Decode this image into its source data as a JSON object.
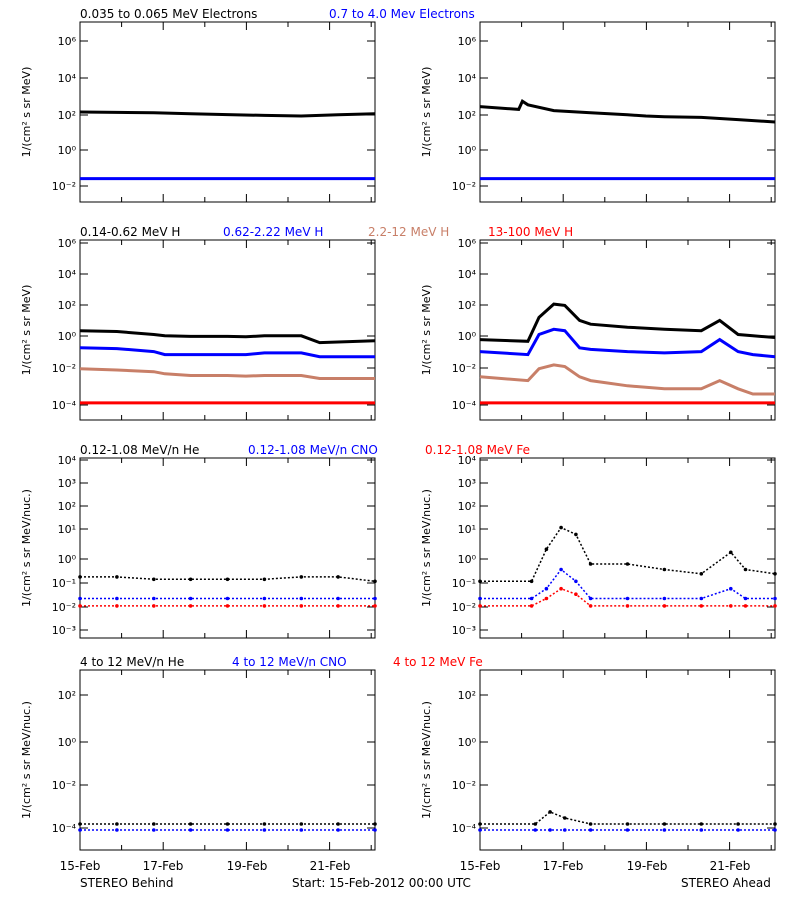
{
  "colors": {
    "black": "#000000",
    "blue": "#0000ff",
    "tan": "#c87f68",
    "red": "#ff0000"
  },
  "rows": [
    {
      "ylabel": "1/(cm² s sr MeV)",
      "legend": [
        {
          "text": "0.035 to 0.065 MeV Electrons",
          "color": "#000000"
        },
        {
          "text": "0.7 to 4.0 Mev Electrons",
          "color": "#0000ff"
        }
      ],
      "ytick_labels": [
        "10⁶",
        "10⁴",
        "10²",
        "10⁰",
        "10⁻²"
      ]
    },
    {
      "ylabel": "1/(cm² s sr MeV)",
      "legend": [
        {
          "text": "0.14-0.62 MeV H",
          "color": "#000000"
        },
        {
          "text": "0.62-2.22 MeV H",
          "color": "#0000ff"
        },
        {
          "text": "2.2-12 MeV H",
          "color": "#c87f68"
        },
        {
          "text": "13-100 MeV H",
          "color": "#ff0000"
        }
      ],
      "ytick_labels": [
        "10⁶",
        "10⁴",
        "10²",
        "10⁰",
        "10⁻²",
        "10⁻⁴"
      ]
    },
    {
      "ylabel": "1/(cm² s sr MeV/nuc.)",
      "legend": [
        {
          "text": "0.12-1.08 MeV/n He",
          "color": "#000000"
        },
        {
          "text": "0.12-1.08 MeV/n CNO",
          "color": "#0000ff"
        },
        {
          "text": "0.12-1.08 MeV Fe",
          "color": "#ff0000"
        }
      ],
      "ytick_labels": [
        "10⁴",
        "10³",
        "10²",
        "10¹",
        "10⁰",
        "10⁻¹",
        "10⁻²",
        "10⁻³"
      ]
    },
    {
      "ylabel": "1/(cm² s sr MeV/nuc.)",
      "legend": [
        {
          "text": "4 to 12 MeV/n He",
          "color": "#000000"
        },
        {
          "text": "4 to 12 MeV/n CNO",
          "color": "#0000ff"
        },
        {
          "text": "4 to 12 MeV Fe",
          "color": "#ff0000"
        }
      ],
      "ytick_labels": [
        "10²",
        "10⁰",
        "10⁻²",
        "10⁻⁴"
      ]
    }
  ],
  "xtick_labels": [
    "15-Feb",
    "17-Feb",
    "19-Feb",
    "21-Feb"
  ],
  "footer": {
    "left": "STEREO Behind",
    "center": "Start: 15-Feb-2012 00:00 UTC",
    "right": "STEREO Ahead"
  },
  "chart_data": [
    {
      "type": "line",
      "panel": "STEREO Behind electrons",
      "ylog": true,
      "ylim": [
        0.001,
        10000000
      ],
      "xlim": [
        0,
        8
      ],
      "x": [
        0,
        1,
        2,
        3,
        4,
        5,
        6,
        7,
        8
      ],
      "series": [
        {
          "name": "0.035 to 0.065 MeV Electrons",
          "color": "#000000",
          "values": [
            100,
            95,
            90,
            80,
            72,
            65,
            60,
            70,
            80
          ]
        },
        {
          "name": "0.7 to 4.0 Mev Electrons",
          "color": "#0000ff",
          "values": [
            0.02,
            0.02,
            0.02,
            0.02,
            0.02,
            0.02,
            0.02,
            0.02,
            0.02
          ]
        }
      ]
    },
    {
      "type": "line",
      "panel": "STEREO Ahead electrons",
      "ylog": true,
      "ylim": [
        0.001,
        10000000
      ],
      "xlim": [
        0,
        8
      ],
      "x": [
        0,
        1.05,
        1.15,
        1.3,
        2,
        3,
        4,
        4.5,
        5,
        6,
        7,
        8
      ],
      "series": [
        {
          "name": "0.035 to 0.065 MeV Electrons",
          "color": "#000000",
          "values": [
            200,
            140,
            400,
            250,
            120,
            90,
            70,
            60,
            55,
            50,
            38,
            28
          ]
        },
        {
          "name": "0.7 to 4.0 Mev Electrons",
          "color": "#0000ff",
          "values": [
            0.02,
            0.02,
            0.02,
            0.02,
            0.02,
            0.02,
            0.02,
            0.02,
            0.02,
            0.02,
            0.02,
            0.02
          ]
        }
      ]
    },
    {
      "type": "line",
      "panel": "STEREO Behind protons",
      "ylog": true,
      "ylim": [
        3e-05,
        1000000
      ],
      "xlim": [
        0,
        8
      ],
      "x": [
        0,
        1,
        2,
        2.3,
        3,
        4,
        4.5,
        5,
        6,
        6.5,
        8
      ],
      "series": [
        {
          "name": "0.14-0.62 MeV H",
          "color": "#000000",
          "values": [
            5,
            4.5,
            3,
            2.5,
            2.3,
            2.3,
            2.2,
            2.5,
            2.5,
            1,
            1.3
          ]
        },
        {
          "name": "0.62-2.22 MeV H",
          "color": "#0000ff",
          "values": [
            0.5,
            0.45,
            0.3,
            0.2,
            0.2,
            0.2,
            0.2,
            0.25,
            0.25,
            0.15,
            0.15
          ]
        },
        {
          "name": "2.2-12 MeV H",
          "color": "#c87f68",
          "values": [
            0.03,
            0.025,
            0.02,
            0.015,
            0.012,
            0.012,
            0.011,
            0.012,
            0.012,
            0.008,
            0.008
          ]
        },
        {
          "name": "13-100 MeV H",
          "color": "#ff0000",
          "values": [
            0.0003,
            0.0003,
            0.0003,
            0.0003,
            0.0003,
            0.0003,
            0.0003,
            0.0003,
            0.0003,
            0.0003,
            0.0003
          ]
        }
      ]
    },
    {
      "type": "line",
      "panel": "STEREO Ahead protons",
      "ylog": true,
      "ylim": [
        3e-05,
        1000000
      ],
      "xlim": [
        0,
        8
      ],
      "x": [
        0,
        1.3,
        1.6,
        2.0,
        2.3,
        2.7,
        3.0,
        4,
        5,
        6,
        6.5,
        7,
        7.4,
        8
      ],
      "series": [
        {
          "name": "0.14-0.62 MeV H",
          "color": "#000000",
          "values": [
            1.5,
            1.2,
            30,
            180,
            150,
            20,
            12,
            8,
            6,
            5,
            20,
            3,
            2.5,
            2
          ]
        },
        {
          "name": "0.62-2.22 MeV H",
          "color": "#0000ff",
          "values": [
            0.3,
            0.2,
            3,
            6,
            5,
            0.5,
            0.4,
            0.3,
            0.25,
            0.3,
            1.5,
            0.3,
            0.2,
            0.15
          ]
        },
        {
          "name": "2.2-12 MeV H",
          "color": "#c87f68",
          "values": [
            0.01,
            0.006,
            0.03,
            0.05,
            0.04,
            0.01,
            0.006,
            0.003,
            0.002,
            0.002,
            0.006,
            0.002,
            0.001,
            0.001
          ]
        },
        {
          "name": "13-100 MeV H",
          "color": "#ff0000",
          "values": [
            0.0003,
            0.0003,
            0.0003,
            0.0003,
            0.0003,
            0.0003,
            0.0003,
            0.0003,
            0.0003,
            0.0003,
            0.0003,
            0.0003,
            0.0003,
            0.0003
          ]
        }
      ]
    },
    {
      "type": "scatter",
      "panel": "STEREO Behind heavy ions 0.12-1.08 MeV/n",
      "ylog": true,
      "ylim": [
        0.0005,
        10000
      ],
      "xlim": [
        0,
        8
      ],
      "x": [
        0,
        1,
        2,
        3,
        4,
        5,
        6,
        7,
        8
      ],
      "series": [
        {
          "name": "0.12-1.08 MeV/n He",
          "color": "#000000",
          "values": [
            0.15,
            0.15,
            0.12,
            0.12,
            0.12,
            0.12,
            0.15,
            0.15,
            0.1
          ]
        },
        {
          "name": "0.12-1.08 MeV/n CNO",
          "color": "#0000ff",
          "values": [
            0.02,
            0.02,
            0.02,
            0.02,
            0.02,
            0.02,
            0.02,
            0.02,
            0.02
          ]
        },
        {
          "name": "0.12-1.08 MeV Fe",
          "color": "#ff0000",
          "values": [
            0.01,
            0.01,
            0.01,
            0.01,
            0.01,
            0.01,
            0.01,
            0.01,
            0.01
          ]
        }
      ]
    },
    {
      "type": "scatter",
      "panel": "STEREO Ahead heavy ions 0.12-1.08 MeV/n",
      "ylog": true,
      "ylim": [
        0.0005,
        10000
      ],
      "xlim": [
        0,
        8
      ],
      "x": [
        0,
        1.4,
        1.8,
        2.2,
        2.6,
        3,
        4,
        5,
        6,
        6.8,
        7.2,
        8
      ],
      "series": [
        {
          "name": "0.12-1.08 MeV/n He",
          "color": "#000000",
          "values": [
            0.1,
            0.1,
            2,
            15,
            8,
            0.5,
            0.5,
            0.3,
            0.2,
            1.5,
            0.3,
            0.2
          ]
        },
        {
          "name": "0.12-1.08 MeV/n CNO",
          "color": "#0000ff",
          "values": [
            0.02,
            0.02,
            0.05,
            0.3,
            0.1,
            0.02,
            0.02,
            0.02,
            0.02,
            0.05,
            0.02,
            0.02
          ]
        },
        {
          "name": "0.12-1.08 MeV Fe",
          "color": "#ff0000",
          "values": [
            0.01,
            0.01,
            0.02,
            0.05,
            0.03,
            0.01,
            0.01,
            0.01,
            0.01,
            0.01,
            0.01,
            0.01
          ]
        }
      ]
    },
    {
      "type": "scatter",
      "panel": "STEREO Behind heavy ions 4-12 MeV/n",
      "ylog": true,
      "ylim": [
        1e-05,
        10000
      ],
      "xlim": [
        0,
        8
      ],
      "x": [
        0,
        1,
        2,
        3,
        4,
        5,
        6,
        7,
        8
      ],
      "series": [
        {
          "name": "4 to 12 MeV/n He",
          "color": "#000000",
          "values": [
            0.0002,
            0.0002,
            0.0002,
            0.0002,
            0.0002,
            0.0002,
            0.0002,
            0.0002,
            0.0002
          ]
        },
        {
          "name": "4 to 12 MeV/n CNO",
          "color": "#0000ff",
          "values": [
            0.0001,
            0.0001,
            0.0001,
            0.0001,
            0.0001,
            0.0001,
            0.0001,
            0.0001,
            0.0001
          ]
        }
      ]
    },
    {
      "type": "scatter",
      "panel": "STEREO Ahead heavy ions 4-12 MeV/n",
      "ylog": true,
      "ylim": [
        1e-05,
        10000
      ],
      "xlim": [
        0,
        8
      ],
      "x": [
        0,
        1.5,
        1.9,
        2.3,
        3,
        4,
        5,
        6,
        7,
        8
      ],
      "series": [
        {
          "name": "4 to 12 MeV/n He",
          "color": "#000000",
          "values": [
            0.0002,
            0.0002,
            0.0008,
            0.0004,
            0.0002,
            0.0002,
            0.0002,
            0.0002,
            0.0002,
            0.0002
          ]
        },
        {
          "name": "4 to 12 MeV/n CNO",
          "color": "#0000ff",
          "values": [
            0.0001,
            0.0001,
            0.0001,
            0.0001,
            0.0001,
            0.0001,
            0.0001,
            0.0001,
            0.0001,
            0.0001
          ]
        }
      ]
    }
  ]
}
